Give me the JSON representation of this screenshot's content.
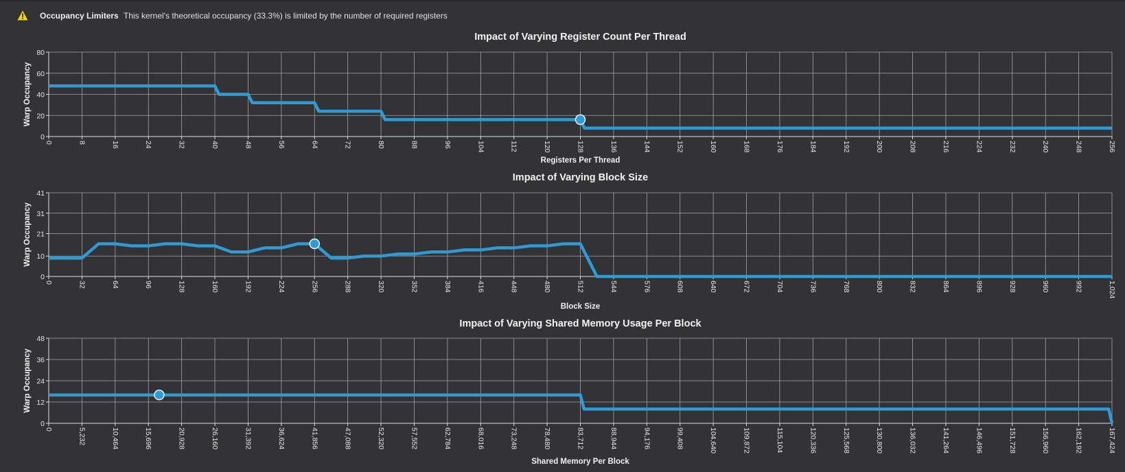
{
  "warning": {
    "icon": "warning-triangle-icon",
    "title": "Occupancy Limiters",
    "message": "This kernel's theoretical occupancy (33.3%) is limited by the number of required registers"
  },
  "colors": {
    "series": "#2f9bd6",
    "background": "#333235",
    "warning": "#f5d40f"
  },
  "chart_data": [
    {
      "type": "line",
      "title": "Impact of Varying Register Count Per Thread",
      "xlabel": "Registers Per Thread",
      "ylabel": "Warp Occupancy",
      "xlim": [
        0,
        256
      ],
      "ylim": [
        0,
        80
      ],
      "xticks": [
        0,
        8,
        16,
        24,
        32,
        40,
        48,
        56,
        64,
        72,
        80,
        88,
        96,
        104,
        112,
        120,
        128,
        136,
        144,
        152,
        160,
        168,
        176,
        184,
        192,
        200,
        208,
        216,
        224,
        232,
        240,
        248,
        256
      ],
      "xtick_labels": [
        "0",
        "8",
        "16",
        "24",
        "32",
        "40",
        "48",
        "56",
        "64",
        "72",
        "80",
        "88",
        "96",
        "104",
        "112",
        "120",
        "128",
        "136",
        "144",
        "152",
        "160",
        "168",
        "176",
        "184",
        "192",
        "200",
        "208",
        "216",
        "224",
        "232",
        "240",
        "248",
        "256"
      ],
      "yticks": [
        0,
        20,
        40,
        60,
        80
      ],
      "ytick_labels": [
        "0",
        "20",
        "40",
        "60",
        "80"
      ],
      "grid": true,
      "series": [
        {
          "x": [
            0,
            40,
            41,
            48,
            49,
            64,
            65,
            80,
            81,
            128,
            129,
            256
          ],
          "y": [
            48,
            48,
            40,
            40,
            32,
            32,
            24,
            24,
            16,
            16,
            8,
            8
          ]
        }
      ],
      "marker": {
        "x": 128,
        "y": 16
      }
    },
    {
      "type": "line",
      "title": "Impact of Varying Block Size",
      "xlabel": "Block Size",
      "ylabel": "Warp Occupancy",
      "xlim": [
        0,
        1024
      ],
      "ylim": [
        0,
        41
      ],
      "xticks": [
        0,
        32,
        64,
        96,
        128,
        160,
        192,
        224,
        256,
        288,
        320,
        352,
        384,
        416,
        448,
        480,
        512,
        544,
        576,
        608,
        640,
        672,
        704,
        736,
        768,
        800,
        832,
        864,
        896,
        928,
        960,
        992,
        1024
      ],
      "xtick_labels": [
        "0",
        "32",
        "64",
        "96",
        "128",
        "160",
        "192",
        "224",
        "256",
        "288",
        "320",
        "352",
        "384",
        "416",
        "448",
        "480",
        "512",
        "544",
        "576",
        "608",
        "640",
        "672",
        "704",
        "736",
        "768",
        "800",
        "832",
        "864",
        "896",
        "928",
        "960",
        "992",
        "1,024"
      ],
      "yticks": [
        0,
        10,
        21,
        31,
        41
      ],
      "ytick_labels": [
        "0",
        "10",
        "21",
        "31",
        "41"
      ],
      "grid": true,
      "series": [
        {
          "x": [
            0,
            32,
            48,
            64,
            80,
            96,
            112,
            128,
            144,
            160,
            176,
            192,
            208,
            224,
            240,
            256,
            272,
            288,
            304,
            320,
            336,
            352,
            368,
            384,
            400,
            416,
            432,
            448,
            464,
            480,
            496,
            512,
            528,
            544,
            1024
          ],
          "y": [
            9,
            9,
            16,
            16,
            15,
            15,
            16,
            16,
            15,
            15,
            12,
            12,
            14,
            14,
            16,
            16,
            9,
            9,
            10,
            10,
            11,
            11,
            12,
            12,
            13,
            13,
            14,
            14,
            15,
            15,
            16,
            16,
            0,
            0,
            0
          ]
        }
      ],
      "marker": {
        "x": 256,
        "y": 16
      }
    },
    {
      "type": "line",
      "title": "Impact of Varying Shared Memory Usage Per Block",
      "xlabel": "Shared Memory Per Block",
      "ylabel": "Warp Occupancy",
      "xlim": [
        0,
        167424
      ],
      "ylim": [
        0,
        48
      ],
      "xticks": [
        0,
        5232,
        10464,
        15696,
        20928,
        26160,
        31392,
        36624,
        41856,
        47088,
        52320,
        57552,
        62784,
        68016,
        73248,
        78480,
        83712,
        88944,
        94176,
        99408,
        104640,
        109872,
        115104,
        120336,
        125568,
        130800,
        136032,
        141264,
        146496,
        151728,
        156960,
        162192,
        167424
      ],
      "xtick_labels": [
        "0",
        "5,232",
        "10,464",
        "15,696",
        "20,928",
        "26,160",
        "31,392",
        "36,624",
        "41,856",
        "47,088",
        "52,320",
        "57,552",
        "62,784",
        "68,016",
        "73,248",
        "78,480",
        "83,712",
        "88,944",
        "94,176",
        "99,408",
        "104,640",
        "109,872",
        "115,104",
        "120,336",
        "125,568",
        "130,800",
        "136,032",
        "141,264",
        "146,496",
        "151,728",
        "156,960",
        "162,192",
        "167,424"
      ],
      "yticks": [
        0,
        12,
        24,
        36,
        48
      ],
      "ytick_labels": [
        "0",
        "12",
        "24",
        "36",
        "48"
      ],
      "grid": true,
      "series": [
        {
          "x": [
            0,
            83712,
            84300,
            166900,
            167424
          ],
          "y": [
            16,
            16,
            8,
            8,
            0
          ]
        }
      ],
      "marker": {
        "x": 17400,
        "y": 16
      }
    }
  ]
}
